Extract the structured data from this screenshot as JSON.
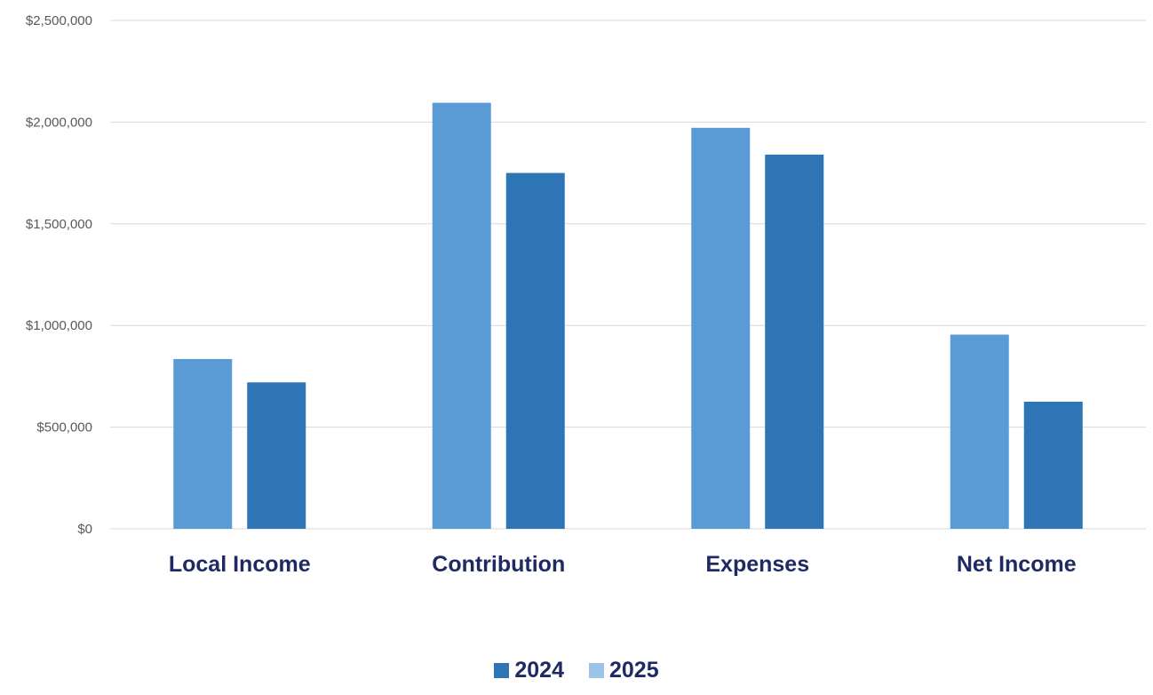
{
  "chart_data": {
    "type": "bar",
    "categories": [
      "Local Income",
      "Contribution",
      "Expenses",
      "Net Income"
    ],
    "series": [
      {
        "name": "2025",
        "values": [
          835000,
          2095000,
          1972000,
          955000
        ]
      },
      {
        "name": "2024",
        "values": [
          720000,
          1750000,
          1840000,
          625000
        ]
      }
    ],
    "legend_order": [
      "2024",
      "2025"
    ],
    "y_ticks": [
      "$0",
      "$500,000",
      "$1,000,000",
      "$1,500,000",
      "$2,000,000",
      "$2,500,000"
    ],
    "ylim": [
      0,
      2500000
    ],
    "y_step": 500000,
    "grid": true,
    "legend_position": "bottom",
    "title": "",
    "xlabel": "",
    "ylabel": "",
    "colors": {
      "2024": "#2e75b6",
      "2025": "#5b9bd5",
      "legend_2024": "#2e75b6",
      "legend_2025": "#9dc3e6",
      "category_label": "#1f2a63",
      "tick_label": "#595959",
      "grid": "#d9d9d9"
    }
  }
}
